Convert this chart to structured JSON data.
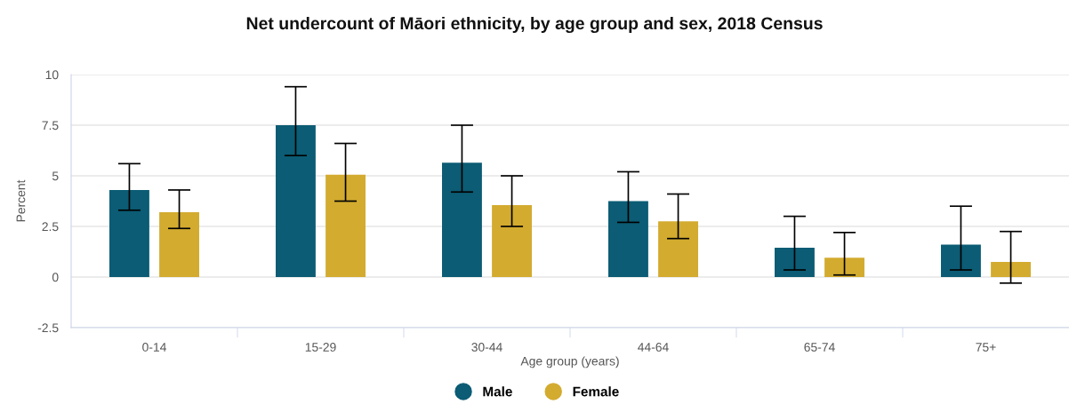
{
  "chart_data": {
    "type": "bar",
    "title": "Net undercount of Māori ethnicity, by age group and sex, 2018 Census",
    "xlabel": "Age group (years)",
    "ylabel": "Percent",
    "categories": [
      "0-14",
      "15-29",
      "30-44",
      "44-64",
      "65-74",
      "75+"
    ],
    "series": [
      {
        "name": "Male",
        "color": "#0b5c74",
        "values": [
          4.3,
          7.5,
          5.65,
          3.75,
          1.45,
          1.6
        ],
        "errors": [
          [
            3.3,
            5.6
          ],
          [
            6.0,
            9.4
          ],
          [
            4.2,
            7.5
          ],
          [
            2.7,
            5.2
          ],
          [
            0.35,
            3.0
          ],
          [
            0.35,
            3.5
          ]
        ]
      },
      {
        "name": "Female",
        "color": "#d3ab2f",
        "values": [
          3.2,
          5.05,
          3.55,
          2.75,
          0.95,
          0.75
        ],
        "errors": [
          [
            2.4,
            4.3
          ],
          [
            3.75,
            6.6
          ],
          [
            2.5,
            5.0
          ],
          [
            1.9,
            4.1
          ],
          [
            0.1,
            2.2
          ],
          [
            -0.3,
            2.25
          ]
        ]
      }
    ],
    "ylim": [
      -2.5,
      10
    ],
    "yticks": [
      {
        "value": -2.5,
        "label": "-2.5"
      },
      0,
      2.5,
      5,
      7.5,
      10
    ],
    "grid": "y",
    "legend": "bottom"
  }
}
